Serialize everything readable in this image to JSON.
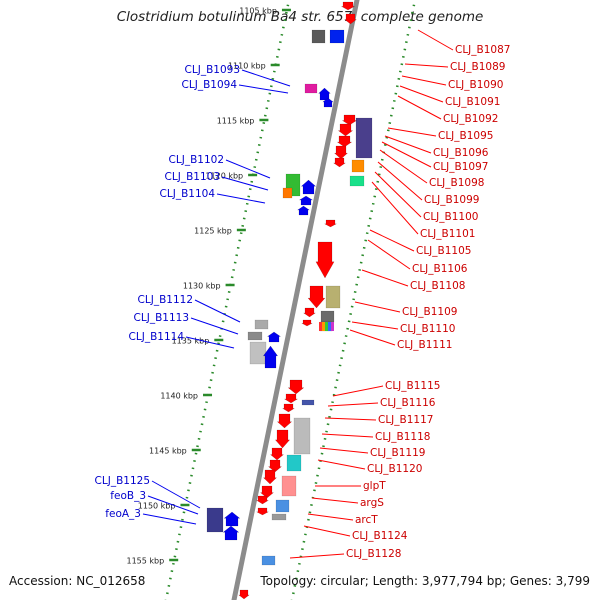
{
  "title": "Clostridium botulinum Ba4 str. 657, complete genome",
  "footer": {
    "accession": "Accession: NC_012658",
    "summary": "Topology: circular; Length: 3,977,794 bp; Genes: 3,799"
  },
  "ticks": [
    {
      "label": "1105 kbp"
    },
    {
      "label": "1110 kbp"
    },
    {
      "label": "1115 kbp"
    },
    {
      "label": "1120 kbp"
    },
    {
      "label": "1125 kbp"
    },
    {
      "label": "1130 kbp"
    },
    {
      "label": "1135 kbp"
    },
    {
      "label": "1140 kbp"
    },
    {
      "label": "1145 kbp"
    },
    {
      "label": "1150 kbp"
    },
    {
      "label": "1155 kbp"
    }
  ],
  "left_labels": [
    "CLJ_B1093",
    "CLJ_B1094",
    "CLJ_B1102",
    "CLJ_B1103",
    "CLJ_B1104",
    "CLJ_B1112",
    "CLJ_B1113",
    "CLJ_B1114",
    "CLJ_B1125",
    "feoB_3",
    "feoA_3"
  ],
  "right_labels": [
    "CLJ_B1087",
    "CLJ_B1089",
    "CLJ_B1090",
    "CLJ_B1091",
    "CLJ_B1092",
    "CLJ_B1095",
    "CLJ_B1096",
    "CLJ_B1097",
    "CLJ_B1098",
    "CLJ_B1099",
    "CLJ_B1100",
    "CLJ_B1101",
    "CLJ_B1105",
    "CLJ_B1106",
    "CLJ_B1108",
    "CLJ_B1109",
    "CLJ_B1110",
    "CLJ_B1111",
    "CLJ_B1115",
    "CLJ_B1116",
    "CLJ_B1117",
    "CLJ_B1118",
    "CLJ_B1119",
    "CLJ_B1120",
    "glpT",
    "argS",
    "arcT",
    "CLJ_B1124",
    "CLJ_B1128"
  ],
  "colors": {
    "backbone": "#8c8c8c",
    "tick": "#2a8a2a",
    "forward_gene": "#ff0000",
    "reverse_gene": "#0000ee",
    "left_label": "#0000cc",
    "right_label": "#cc0000"
  }
}
